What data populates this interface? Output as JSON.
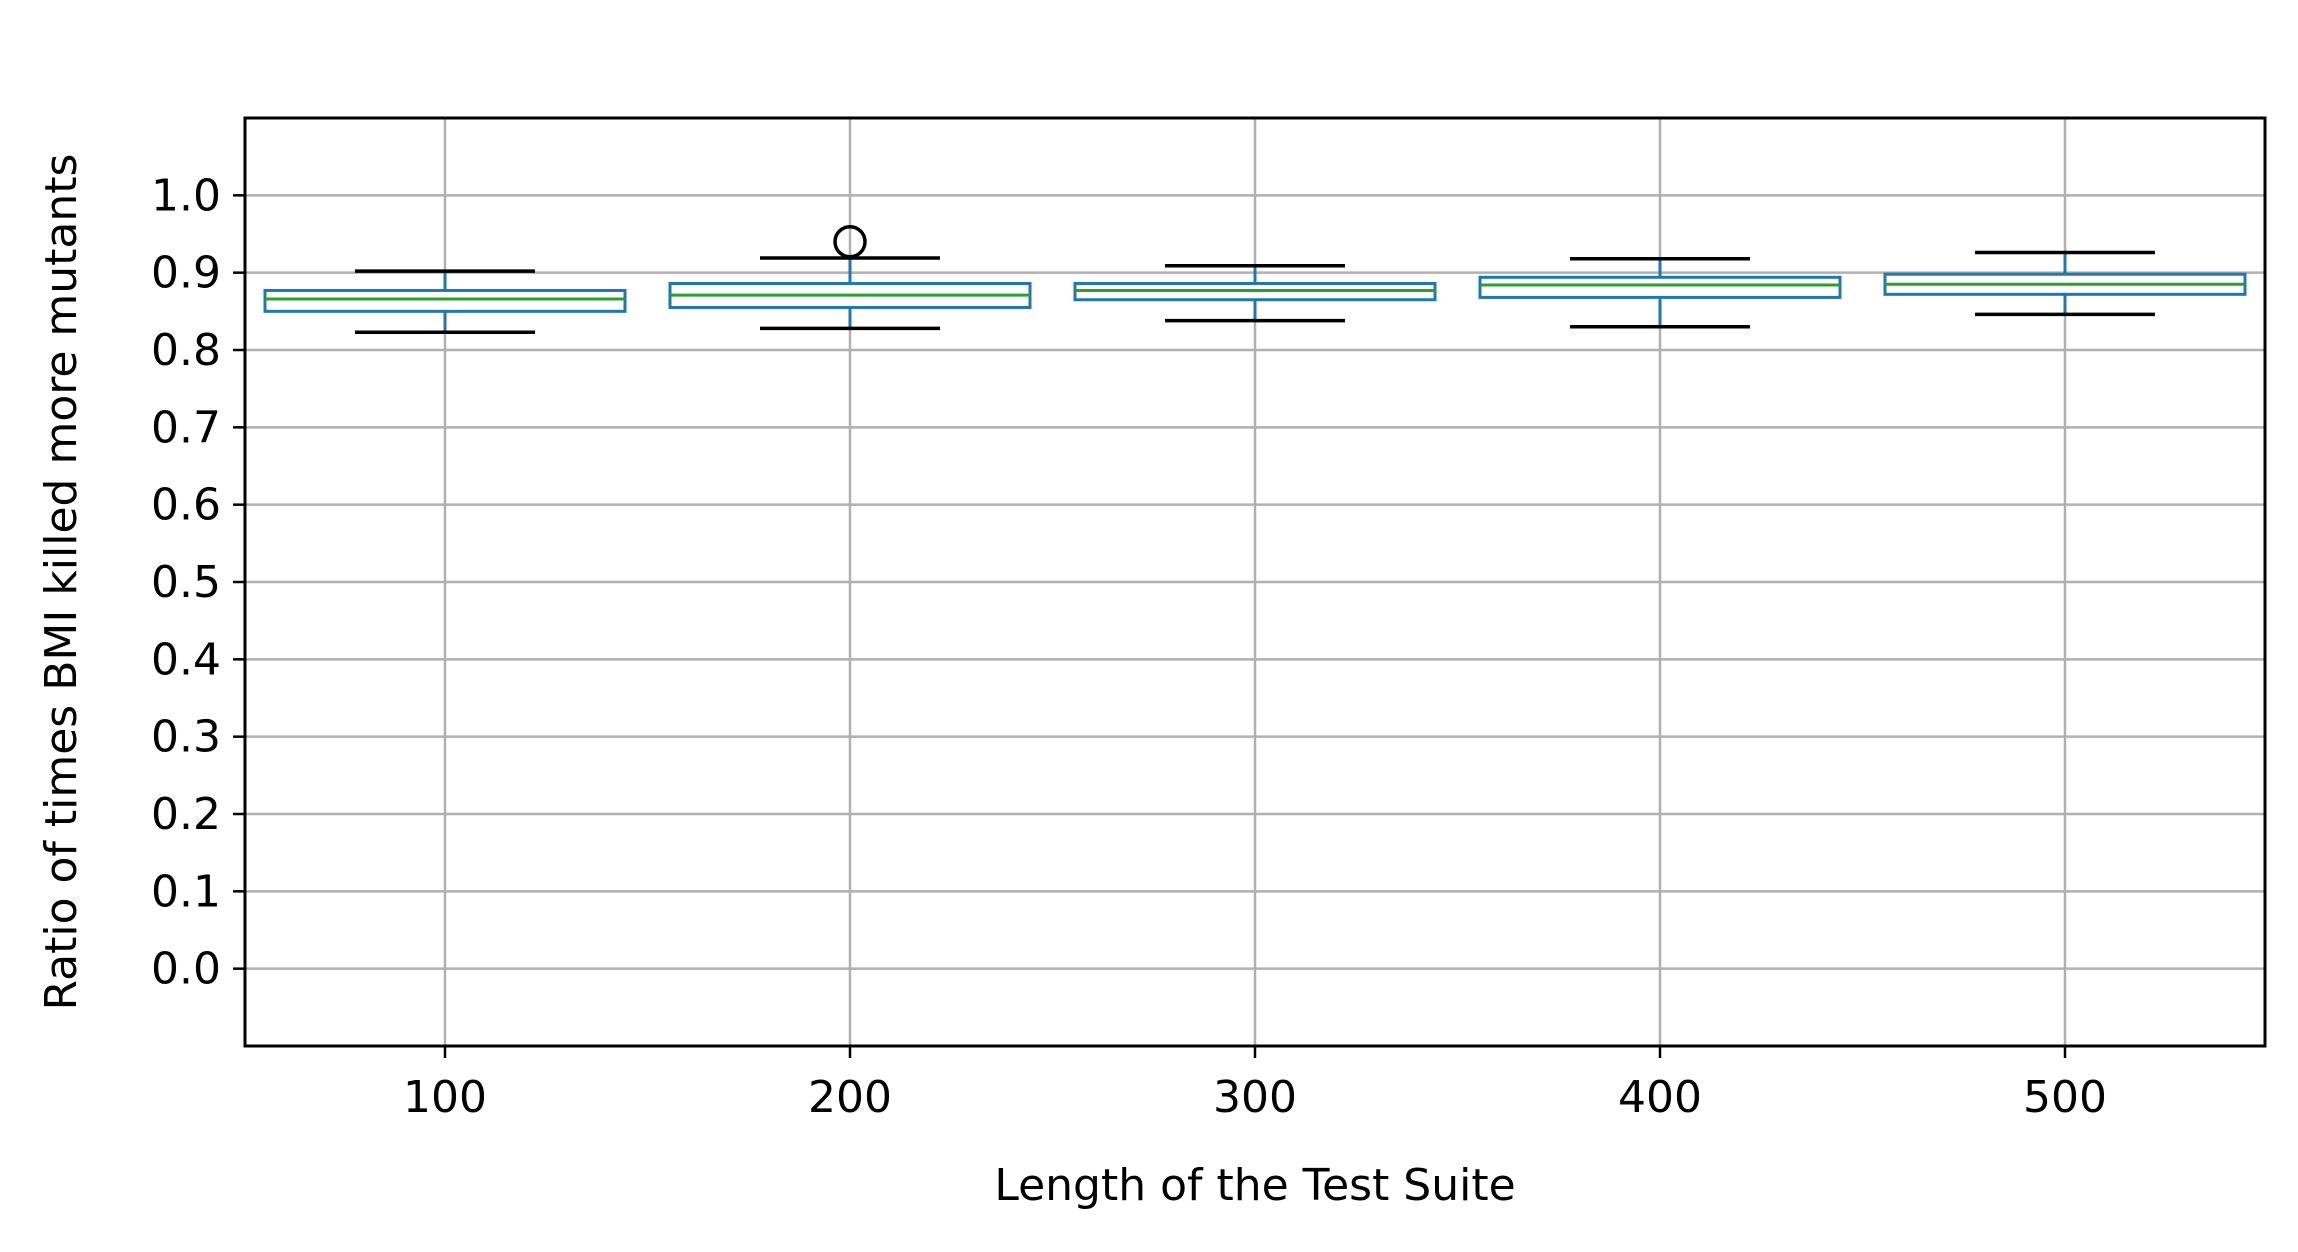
{
  "chart_data": {
    "type": "box",
    "xlabel": "Length of the Test Suite",
    "ylabel": "Ratio of times BMI killed more mutants",
    "ylim": [
      -0.1,
      1.1
    ],
    "yticks": [
      0.0,
      0.1,
      0.2,
      0.3,
      0.4,
      0.5,
      0.6,
      0.7,
      0.8,
      0.9,
      1.0
    ],
    "ytick_labels": [
      "0.0",
      "0.1",
      "0.2",
      "0.3",
      "0.4",
      "0.5",
      "0.6",
      "0.7",
      "0.8",
      "0.9",
      "1.0"
    ],
    "categories": [
      "100",
      "200",
      "300",
      "400",
      "500"
    ],
    "grid": true,
    "colors": {
      "box": "#1f77b4",
      "median": "#2ca02c",
      "cap": "#000000",
      "grid": "#b0b0b0",
      "frame": "#000000",
      "flier": "#000000"
    },
    "boxes": [
      {
        "category": "100",
        "whisker_low": 0.823,
        "q1": 0.85,
        "median": 0.866,
        "q3": 0.877,
        "whisker_high": 0.902,
        "outliers": []
      },
      {
        "category": "200",
        "whisker_low": 0.828,
        "q1": 0.855,
        "median": 0.871,
        "q3": 0.886,
        "whisker_high": 0.919,
        "outliers": [
          0.94
        ]
      },
      {
        "category": "300",
        "whisker_low": 0.838,
        "q1": 0.865,
        "median": 0.877,
        "q3": 0.886,
        "whisker_high": 0.909,
        "outliers": []
      },
      {
        "category": "400",
        "whisker_low": 0.83,
        "q1": 0.868,
        "median": 0.884,
        "q3": 0.894,
        "whisker_high": 0.918,
        "outliers": []
      },
      {
        "category": "500",
        "whisker_low": 0.846,
        "q1": 0.872,
        "median": 0.885,
        "q3": 0.898,
        "whisker_high": 0.926,
        "outliers": []
      }
    ]
  }
}
